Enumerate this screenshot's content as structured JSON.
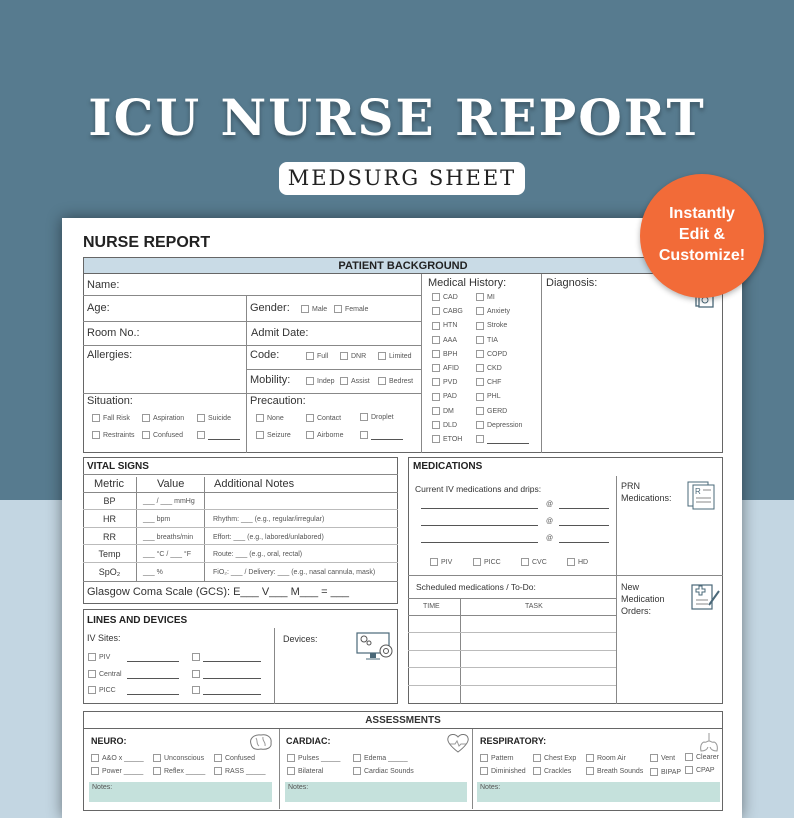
{
  "banner": {
    "title": "ICU NURSE REPORT",
    "subtitle": "MEDSURG SHEET",
    "badge": [
      "Instantly",
      "Edit &",
      "Customize!"
    ]
  },
  "colors": {
    "background_top": "#577b8f",
    "background_bottom": "#c3d6e2",
    "badge": "#f26b38",
    "section_header": "#c9dbe6",
    "notes": "#c5e1dc"
  },
  "sheet": {
    "title": "NURSE REPORT"
  },
  "patient": {
    "header": "PATIENT BACKGROUND",
    "name": "Name:",
    "age": "Age:",
    "gender": "Gender:",
    "gender_opts": [
      "Male",
      "Female"
    ],
    "room": "Room No.:",
    "admit": "Admit Date:",
    "allergies": "Allergies:",
    "code": "Code:",
    "code_opts": [
      "Full",
      "DNR",
      "Limited"
    ],
    "mobility": "Mobility:",
    "mobility_opts": [
      "Indep",
      "Assist",
      "Bedrest"
    ],
    "situation": "Situation:",
    "situation_opts": [
      "Fall Risk",
      "Aspiration",
      "Suicide",
      "Restraints",
      "Confused"
    ],
    "precaution": "Precaution:",
    "precaution_opts": [
      "None",
      "Contact",
      "Droplet",
      "Seizure",
      "Airborne"
    ],
    "medical_history": "Medical History:",
    "history_left": [
      "CAD",
      "CABG",
      "HTN",
      "AAA",
      "BPH",
      "AFID",
      "PVD",
      "PAD",
      "DM",
      "DLD",
      "ETOH"
    ],
    "history_right": [
      "MI",
      "Anxiety",
      "Stroke",
      "TIA",
      "COPD",
      "CKD",
      "CHF",
      "PHL",
      "GERD",
      "Depression"
    ],
    "diagnosis": "Diagnosis:"
  },
  "vitals": {
    "header": "VITAL SIGNS",
    "columns": [
      "Metric",
      "Value",
      "Additional Notes"
    ],
    "rows": [
      {
        "metric": "BP",
        "value": "___ / ___ mmHg",
        "notes": ""
      },
      {
        "metric": "HR",
        "value": "___ bpm",
        "notes": "Rhythm: ___ (e.g., regular/irregular)"
      },
      {
        "metric": "RR",
        "value": "___ breaths/min",
        "notes": "Effort: ___ (e.g., labored/unlabored)"
      },
      {
        "metric": "Temp",
        "value": "___ °C / ___ °F",
        "notes": "Route: ___ (e.g., oral, rectal)"
      },
      {
        "metric": "SpO₂",
        "value": "___ %",
        "notes": "FiO₂: ___ / Delivery: ___ (e.g., nasal cannula, mask)"
      }
    ],
    "gcs": "Glasgow Coma Scale (GCS): E___ V___ M___ = ___"
  },
  "lines": {
    "header": "LINES AND DEVICES",
    "iv_sites": "IV Sites:",
    "sites": [
      "PIV",
      "Central",
      "PICC"
    ],
    "devices": "Devices:"
  },
  "medications": {
    "header": "MEDICATIONS",
    "current_iv": "Current IV medications and drips:",
    "at": "@",
    "iv_opts": [
      "PIV",
      "PICC",
      "CVC",
      "HD"
    ],
    "prn": "PRN Medications:",
    "scheduled": "Scheduled medications / To-Do:",
    "time_col": "TIME",
    "task_col": "TASK",
    "new_orders": "New Medication Orders:"
  },
  "assessments": {
    "header": "ASSESSMENTS",
    "neuro": {
      "title": "NEURO:",
      "opts": [
        "A&O x _____",
        "Unconscious",
        "Confused",
        "Power _____",
        "Reflex _____",
        "RASS _____"
      ],
      "notes": "Notes:"
    },
    "cardiac": {
      "title": "CARDIAC:",
      "opts": [
        "Pulses _____",
        "Edema _____",
        "Bilateral",
        "Cardiac Sounds"
      ],
      "notes": "Notes:"
    },
    "respiratory": {
      "title": "RESPIRATORY:",
      "opts": [
        "Pattern",
        "Chest Exp",
        "Room Air",
        "Vent",
        "Clearer",
        "Diminished",
        "Crackles",
        "Breath Sounds",
        "BIPAP",
        "CPAP"
      ],
      "notes": "Notes:"
    }
  }
}
